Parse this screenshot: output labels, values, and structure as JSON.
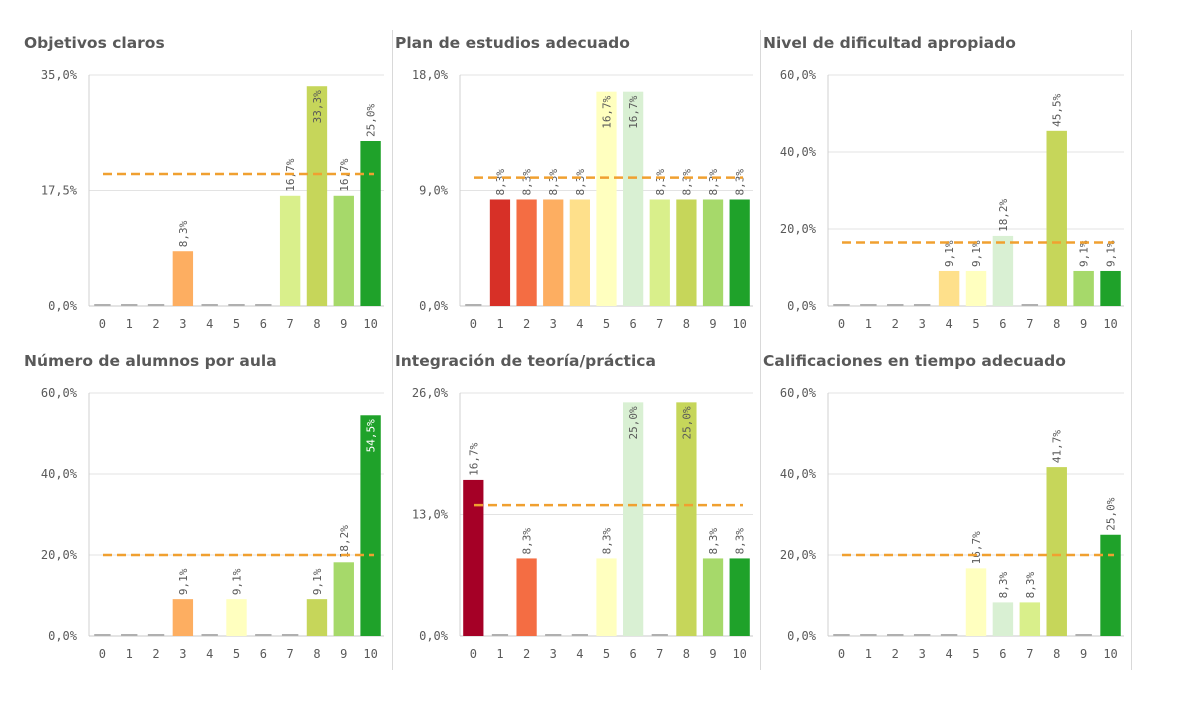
{
  "chart_data": [
    {
      "type": "bar",
      "title": "Objetivos claros",
      "categories": [
        "0",
        "1",
        "2",
        "3",
        "4",
        "5",
        "6",
        "7",
        "8",
        "9",
        "10"
      ],
      "values": [
        0,
        0,
        0,
        8.3,
        0,
        0,
        0,
        16.7,
        33.3,
        16.7,
        25.0
      ],
      "data_labels": [
        "",
        "",
        "",
        "8,3%",
        "",
        "",
        "",
        "16,7%",
        "33,3%",
        "16,7%",
        "25,0%"
      ],
      "yticks": [
        "0,0%",
        "17,5%",
        "35,0%"
      ],
      "ylim": [
        0,
        35.0
      ],
      "reference_line": 20.0,
      "colors": [
        "#a50026",
        "#d73027",
        "#f46d43",
        "#fdae61",
        "#fee08b",
        "#ffffbf",
        "#d9f0d3",
        "#d9ef8b",
        "#c6d65a",
        "#a6d96a",
        "#1fa22a"
      ]
    },
    {
      "type": "bar",
      "title": "Plan de estudios adecuado",
      "categories": [
        "0",
        "1",
        "2",
        "3",
        "4",
        "5",
        "6",
        "7",
        "8",
        "9",
        "10"
      ],
      "values": [
        0,
        8.3,
        8.3,
        8.3,
        8.3,
        16.7,
        16.7,
        8.3,
        8.3,
        8.3,
        8.3
      ],
      "data_labels": [
        "",
        "8,3%",
        "8,3%",
        "8,3%",
        "8,3%",
        "16,7%",
        "16,7%",
        "8,3%",
        "8,3%",
        "8,3%",
        "8,3%"
      ],
      "yticks": [
        "0,0%",
        "9,0%",
        "18,0%"
      ],
      "ylim": [
        0,
        18.0
      ],
      "reference_line": 10.0,
      "colors": [
        "#a50026",
        "#d73027",
        "#f46d43",
        "#fdae61",
        "#fee08b",
        "#ffffbf",
        "#d9f0d3",
        "#d9ef8b",
        "#c6d65a",
        "#a6d96a",
        "#1fa22a"
      ]
    },
    {
      "type": "bar",
      "title": "Nivel de dificultad apropiado",
      "categories": [
        "0",
        "1",
        "2",
        "3",
        "4",
        "5",
        "6",
        "7",
        "8",
        "9",
        "10"
      ],
      "values": [
        0,
        0,
        0,
        0,
        9.1,
        9.1,
        18.2,
        0,
        45.5,
        9.1,
        9.1
      ],
      "data_labels": [
        "",
        "",
        "",
        "",
        "9,1%",
        "9,1%",
        "18,2%",
        "",
        "45,5%",
        "9,1%",
        "9,1%"
      ],
      "yticks": [
        "0,0%",
        "20,0%",
        "40,0%",
        "60,0%"
      ],
      "ylim": [
        0,
        60.0
      ],
      "reference_line": 16.5,
      "colors": [
        "#a50026",
        "#d73027",
        "#f46d43",
        "#fdae61",
        "#fee08b",
        "#ffffbf",
        "#d9f0d3",
        "#d9ef8b",
        "#c6d65a",
        "#a6d96a",
        "#1fa22a"
      ]
    },
    {
      "type": "bar",
      "title": "Número de alumnos por aula",
      "categories": [
        "0",
        "1",
        "2",
        "3",
        "4",
        "5",
        "6",
        "7",
        "8",
        "9",
        "10"
      ],
      "values": [
        0,
        0,
        0,
        9.1,
        0,
        9.1,
        0,
        0,
        9.1,
        18.2,
        54.5
      ],
      "data_labels": [
        "",
        "",
        "",
        "9,1%",
        "",
        "9,1%",
        "",
        "",
        "9,1%",
        "18,2%",
        "54,5%"
      ],
      "yticks": [
        "0,0%",
        "20,0%",
        "40,0%",
        "60,0%"
      ],
      "ylim": [
        0,
        60.0
      ],
      "reference_line": 20.0,
      "colors": [
        "#a50026",
        "#d73027",
        "#f46d43",
        "#fdae61",
        "#fee08b",
        "#ffffbf",
        "#d9f0d3",
        "#d9ef8b",
        "#c6d65a",
        "#a6d96a",
        "#1fa22a"
      ]
    },
    {
      "type": "bar",
      "title": "Integración de teoría/práctica",
      "categories": [
        "0",
        "1",
        "2",
        "3",
        "4",
        "5",
        "6",
        "7",
        "8",
        "9",
        "10"
      ],
      "values": [
        16.7,
        0,
        8.3,
        0,
        0,
        8.3,
        25.0,
        0,
        25.0,
        8.3,
        8.3
      ],
      "data_labels": [
        "16,7%",
        "",
        "8,3%",
        "",
        "",
        "8,3%",
        "25,0%",
        "",
        "25,0%",
        "8,3%",
        "8,3%"
      ],
      "yticks": [
        "0,0%",
        "13,0%",
        "26,0%"
      ],
      "ylim": [
        0,
        26.0
      ],
      "reference_line": 14.0,
      "colors": [
        "#a50026",
        "#d73027",
        "#f46d43",
        "#fdae61",
        "#fee08b",
        "#ffffbf",
        "#d9f0d3",
        "#d9ef8b",
        "#c6d65a",
        "#a6d96a",
        "#1fa22a"
      ]
    },
    {
      "type": "bar",
      "title": "Calificaciones en tiempo adecuado",
      "categories": [
        "0",
        "1",
        "2",
        "3",
        "4",
        "5",
        "6",
        "7",
        "8",
        "9",
        "10"
      ],
      "values": [
        0,
        0,
        0,
        0,
        0,
        16.7,
        8.3,
        8.3,
        41.7,
        0,
        25.0
      ],
      "data_labels": [
        "",
        "",
        "",
        "",
        "",
        "16,7%",
        "8,3%",
        "8,3%",
        "41,7%",
        "",
        "25,0%"
      ],
      "yticks": [
        "0,0%",
        "20,0%",
        "40,0%",
        "60,0%"
      ],
      "ylim": [
        0,
        60.0
      ],
      "reference_line": 20.0,
      "colors": [
        "#a50026",
        "#d73027",
        "#f46d43",
        "#fdae61",
        "#fee08b",
        "#ffffbf",
        "#d9f0d3",
        "#d9ef8b",
        "#c6d65a",
        "#a6d96a",
        "#1fa22a"
      ]
    }
  ]
}
